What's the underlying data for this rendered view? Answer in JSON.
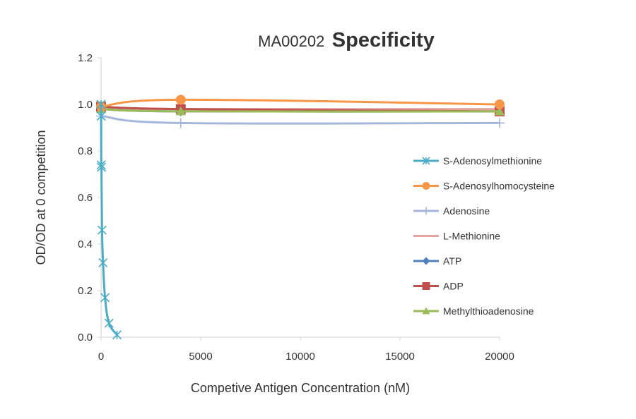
{
  "chart_data": {
    "type": "line",
    "title_prefix": "MA00202",
    "title_main": "Specificity",
    "xlabel": "Competive Antigen Concentration (nM)",
    "ylabel": "OD/OD at 0 competition",
    "xlim": [
      0,
      20000
    ],
    "ylim": [
      0,
      1.2
    ],
    "xticks": [
      0,
      5000,
      10000,
      15000,
      20000
    ],
    "yticks": [
      0.0,
      0.2,
      0.4,
      0.6,
      0.8,
      1.0,
      1.2
    ],
    "x_tick_labels": [
      "0",
      "5000",
      "10000",
      "15000",
      "20000"
    ],
    "y_tick_labels": [
      "0.0",
      "0.2",
      "0.4",
      "0.6",
      "0.8",
      "1.0",
      "1.2"
    ],
    "grid": false,
    "legend_position": "right",
    "series": [
      {
        "name": "S-Adenosylmethionine",
        "color": "#4bacc6",
        "marker": "asterisk",
        "x": [
          0,
          5,
          10,
          20,
          50,
          100,
          200,
          400,
          800
        ],
        "y": [
          1.0,
          0.95,
          0.74,
          0.73,
          0.46,
          0.32,
          0.17,
          0.06,
          0.01
        ]
      },
      {
        "name": "S-Adenosylhomocysteine",
        "color": "#f79646",
        "marker": "circle",
        "x": [
          0,
          4000,
          20000
        ],
        "y": [
          0.99,
          1.02,
          1.0
        ]
      },
      {
        "name": "Adenosine",
        "color": "#a5b8dc",
        "marker": "plus",
        "x": [
          0,
          4000,
          20000
        ],
        "y": [
          0.95,
          0.92,
          0.92
        ]
      },
      {
        "name": "L-Methionine",
        "color": "#e6a4a0",
        "marker": "none",
        "x": [
          0,
          4000,
          20000
        ],
        "y": [
          0.98,
          0.98,
          0.98
        ]
      },
      {
        "name": "ATP",
        "color": "#4f81bd",
        "marker": "diamond",
        "x": [
          0,
          4000,
          20000
        ],
        "y": [
          0.98,
          0.97,
          0.97
        ]
      },
      {
        "name": "ADP",
        "color": "#c0504d",
        "marker": "square",
        "x": [
          0,
          4000,
          20000
        ],
        "y": [
          0.99,
          0.98,
          0.97
        ]
      },
      {
        "name": "Methylthioadenosine",
        "color": "#9bbb59",
        "marker": "triangle",
        "x": [
          0,
          4000,
          20000
        ],
        "y": [
          0.98,
          0.97,
          0.97
        ]
      }
    ]
  }
}
